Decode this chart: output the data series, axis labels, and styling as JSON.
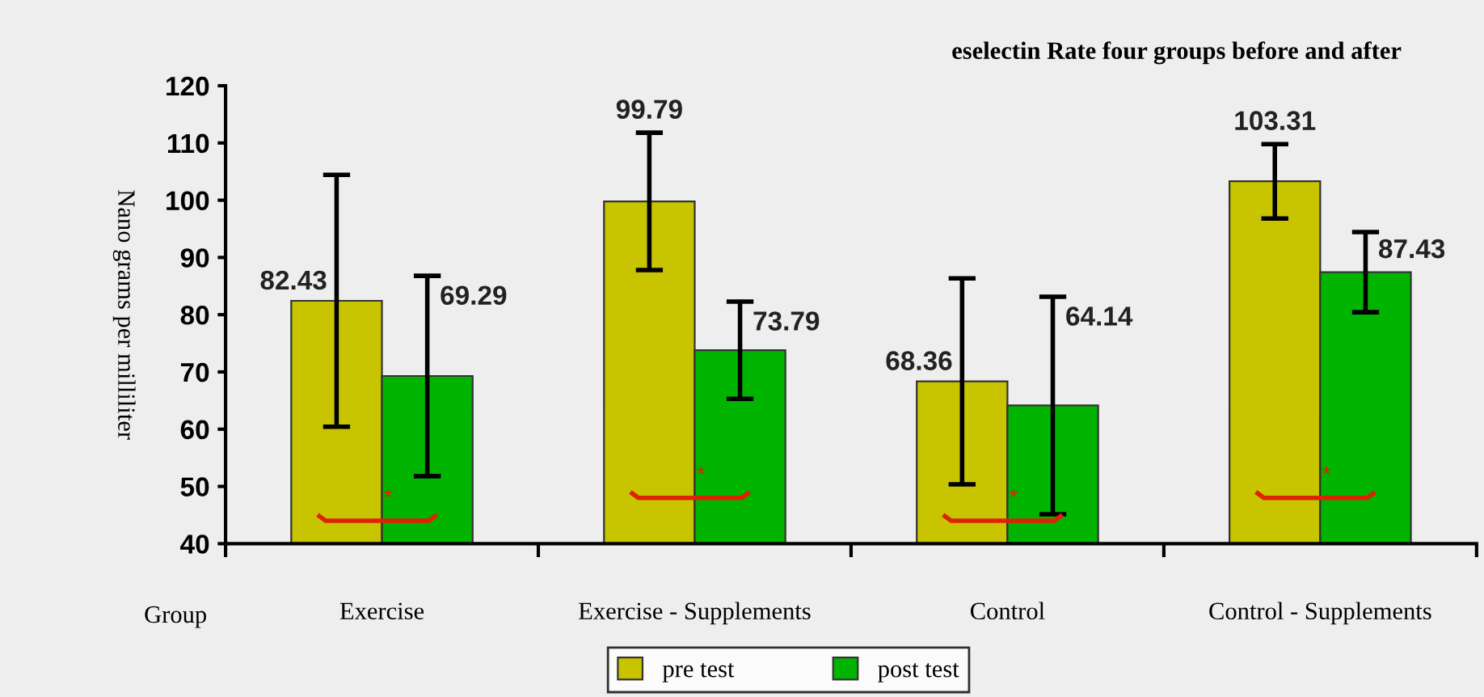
{
  "chart_data": {
    "type": "bar",
    "title": "eselectin Rate four groups before and after",
    "ylabel": "Nano grams per milliliter",
    "xlabel": "Group",
    "categories": [
      "Exercise",
      "Exercise - Supplements",
      "Control",
      "Control - Supplements"
    ],
    "series": [
      {
        "name": "pre test",
        "color": "#c8c400",
        "values": [
          82.43,
          99.79,
          68.36,
          103.31
        ],
        "errors": [
          22,
          12,
          18,
          6.5
        ]
      },
      {
        "name": "post test",
        "color": "#00b400",
        "values": [
          69.29,
          73.79,
          64.14,
          87.43
        ],
        "errors": [
          17.5,
          8.5,
          19,
          7
        ]
      }
    ],
    "ylim": [
      40,
      120
    ],
    "yticks": [
      40,
      50,
      60,
      70,
      80,
      90,
      100,
      110,
      120
    ],
    "data_labels": true,
    "grid": false,
    "legend": "bottom",
    "annotations": [
      "*",
      "*",
      "*",
      "*"
    ]
  }
}
